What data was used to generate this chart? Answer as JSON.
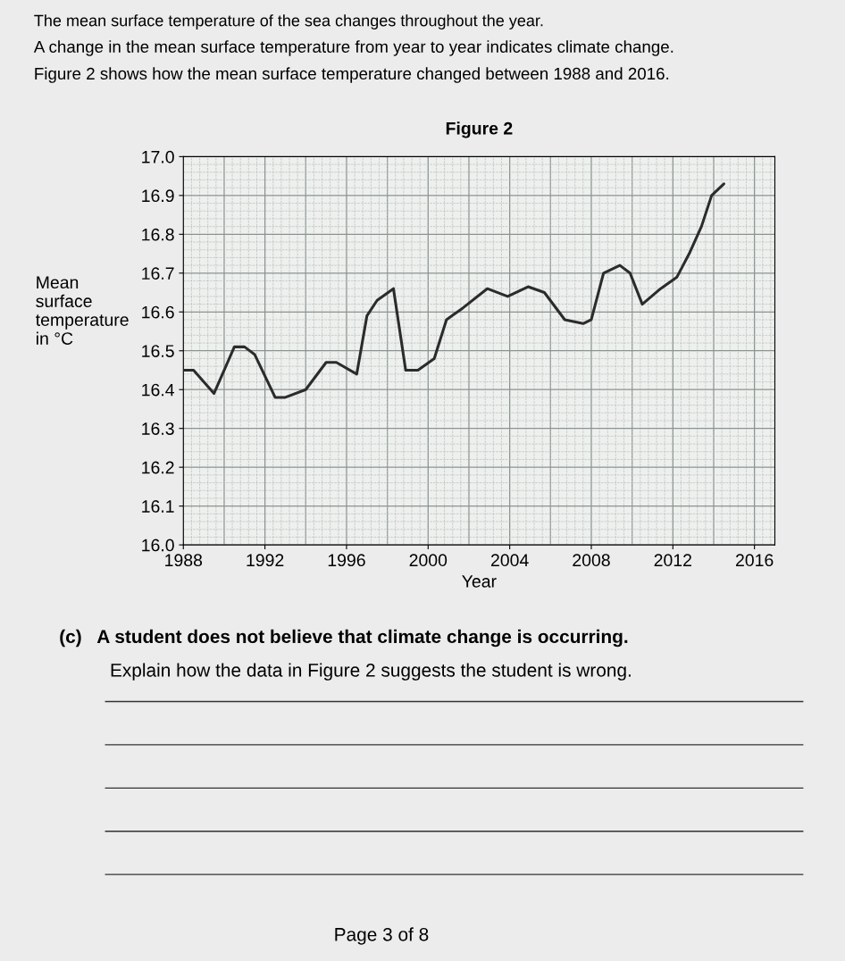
{
  "chart_data": {
    "type": "line",
    "title": "Figure 2",
    "xlabel": "Year",
    "ylabel": "Mean\nsurface\ntemperature\nin °C",
    "x": [
      1988,
      1988.5,
      1989.5,
      1990.5,
      1991,
      1991.5,
      1992.5,
      1993,
      1994,
      1995,
      1995.5,
      1996.5,
      1997,
      1997.5,
      1998.3,
      1998.9,
      1999.5,
      2000.3,
      2000.9,
      2001.7,
      2002.9,
      2003.9,
      2004.9,
      2005.7,
      2006.7,
      2007.6,
      2008,
      2008.6,
      2009.4,
      2009.9,
      2010.5,
      2011.4,
      2012.2,
      2012.8,
      2013.4,
      2013.9,
      2014.5
    ],
    "series": [
      {
        "color": "#2b2b2b",
        "values": [
          16.45,
          16.45,
          16.39,
          16.51,
          16.51,
          16.49,
          16.38,
          16.38,
          16.4,
          16.47,
          16.47,
          16.44,
          16.59,
          16.63,
          16.66,
          16.45,
          16.45,
          16.48,
          16.58,
          16.61,
          16.66,
          16.64,
          16.665,
          16.65,
          16.58,
          16.57,
          16.58,
          16.7,
          16.72,
          16.7,
          16.62,
          16.66,
          16.69,
          16.75,
          16.82,
          16.9,
          16.93
        ]
      }
    ],
    "xlim": [
      1988,
      2017
    ],
    "xticks": [
      1988,
      1992,
      1996,
      2000,
      2004,
      2008,
      2012,
      2016
    ],
    "ylim": [
      16.0,
      17.0
    ],
    "yticks": [
      {
        "value": 16.0,
        "label": "16.0"
      },
      16.1,
      16.2,
      16.3,
      16.4,
      16.5,
      16.6,
      16.7,
      16.8,
      16.9,
      {
        "value": 17.0,
        "label": "17.0"
      }
    ],
    "grid": true,
    "marker": "none",
    "line_style": "solid",
    "annotations": [
      "The mean surface temperature of the sea changes throughout the year.",
      "A change in the mean surface temperature from year to year indicates climate change.",
      "Figure 2 shows how the mean surface temperature changed between 1988 and 2016.",
      "(c)   A student does not believe that climate change is occurring.",
      "Explain how the data in Figure 2 suggests the student is wrong.",
      "Page 3 of 8"
    ]
  }
}
